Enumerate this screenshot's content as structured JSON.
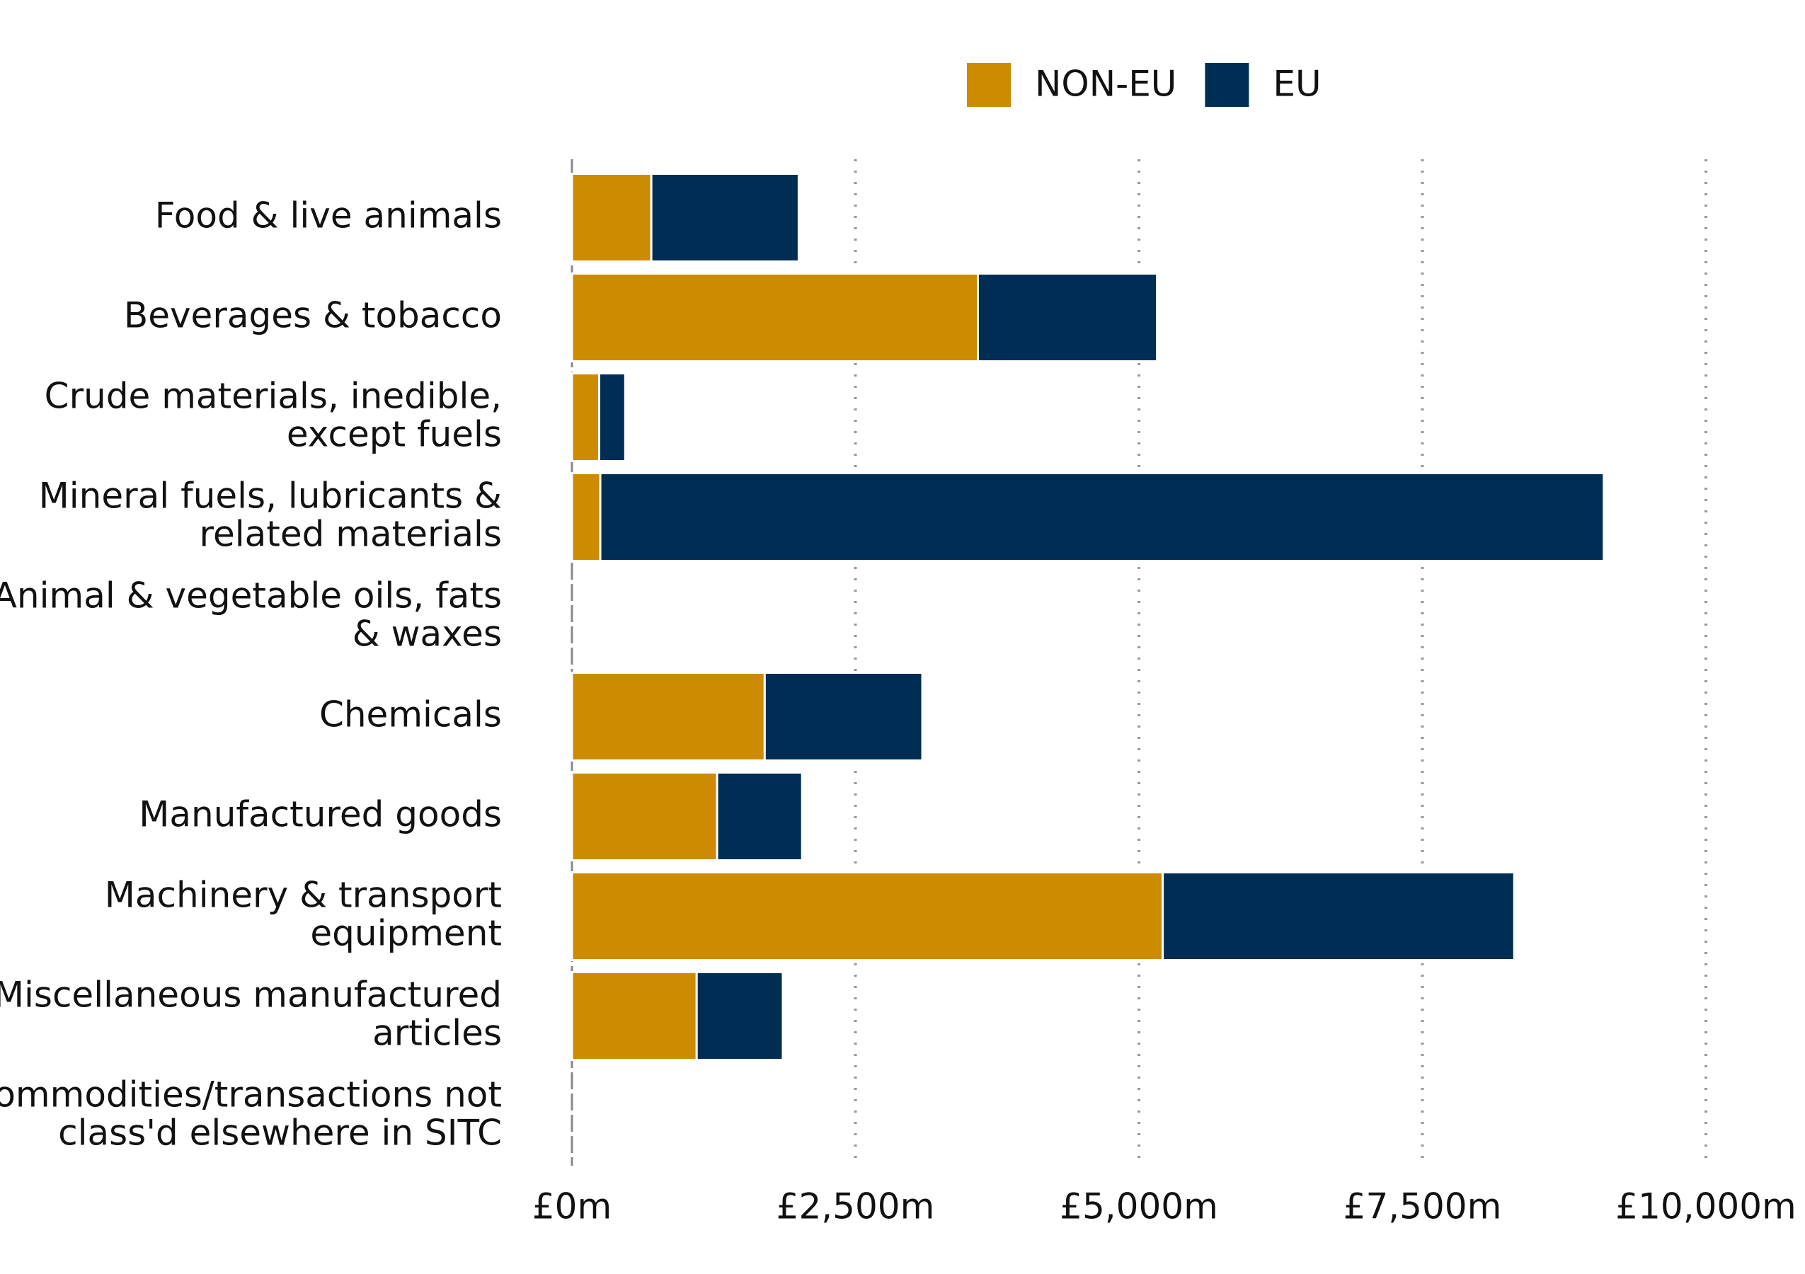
{
  "chart_data": {
    "type": "stacked-bar-horizontal",
    "categories": [
      [
        "Food & live animals"
      ],
      [
        "Beverages & tobacco"
      ],
      [
        "Crude materials, inedible,",
        "except fuels"
      ],
      [
        "Mineral fuels, lubricants &",
        "related materials"
      ],
      [
        "Animal & vegetable oils, fats",
        "& waxes"
      ],
      [
        "Chemicals"
      ],
      [
        "Manufactured goods"
      ],
      [
        "Machinery & transport",
        "equipment"
      ],
      [
        "Miscellaneous manufactured",
        "articles"
      ],
      [
        "Commodities/transactions not",
        "class'd elsewhere in SITC"
      ]
    ],
    "series": [
      {
        "name": "NON-EU",
        "color": "#cc8b00",
        "values": [
          700,
          3580,
          240,
          250,
          0,
          1700,
          1280,
          5210,
          1100,
          0
        ]
      },
      {
        "name": "EU",
        "color": "#002d54",
        "values": [
          1300,
          1580,
          230,
          8850,
          0,
          1390,
          750,
          3100,
          760,
          0
        ]
      }
    ],
    "xlim": [
      0,
      10000
    ],
    "xticks": [
      {
        "value": 0,
        "label": "£0m"
      },
      {
        "value": 2500,
        "label": "£2,500m"
      },
      {
        "value": 5000,
        "label": "£5,000m"
      },
      {
        "value": 7500,
        "label": "£7,500m"
      },
      {
        "value": 10000,
        "label": "£10,000m"
      }
    ],
    "grid": true,
    "legend": "top"
  }
}
